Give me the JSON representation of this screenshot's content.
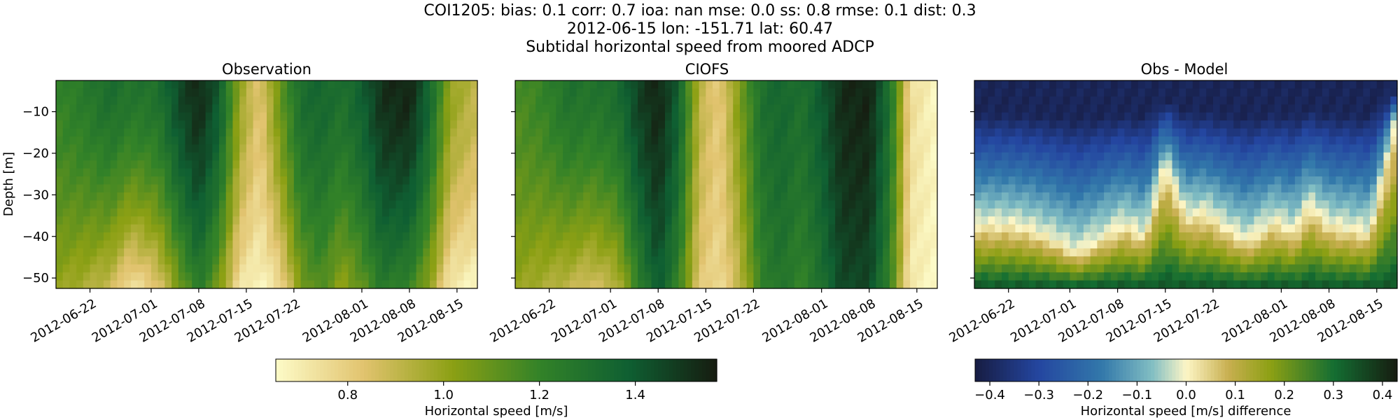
{
  "figure": {
    "title_lines": [
      "COI1205: bias: 0.1  corr: 0.7  ioa: nan  mse: 0.0  ss: 0.8  rmse: 0.1  dist: 0.3",
      "2012-06-15 lon: -151.71 lat: 60.47",
      "Subtidal horizontal speed from moored ADCP"
    ]
  },
  "chart_data": [
    {
      "type": "heatmap",
      "title": "Observation",
      "ylabel": "Depth [m]",
      "xlabel": "",
      "x_range": [
        "2012-06-17",
        "2012-08-18"
      ],
      "y_range": [
        -52.5,
        -2.5
      ],
      "x_ticks": [
        "2012-06-22",
        "2012-07-01",
        "2012-07-08",
        "2012-07-15",
        "2012-07-22",
        "2012-08-01",
        "2012-08-08",
        "2012-08-15"
      ],
      "y_ticks": [
        -10,
        -20,
        -30,
        -40,
        -50
      ],
      "y_tick_labels": [
        "−10",
        "−20",
        "−30",
        "−40",
        "−50"
      ],
      "colormap": "speed",
      "colorbar": {
        "label": "Horizontal speed [m/s]",
        "vmin": 0.65,
        "vmax": 1.57,
        "ticks": [
          0.8,
          1.0,
          1.2,
          1.4
        ],
        "tick_labels": [
          "0.8",
          "1.0",
          "1.2",
          "1.4"
        ]
      },
      "time_profile": {
        "dates": [
          "2012-06-17",
          "2012-06-21",
          "2012-06-25",
          "2012-06-28",
          "2012-07-02",
          "2012-07-05",
          "2012-07-08",
          "2012-07-11",
          "2012-07-14",
          "2012-07-17",
          "2012-07-20",
          "2012-07-23",
          "2012-07-26",
          "2012-07-29",
          "2012-08-01",
          "2012-08-04",
          "2012-08-08",
          "2012-08-11",
          "2012-08-14",
          "2012-08-18"
        ],
        "surface_speed": [
          1.2,
          1.25,
          1.32,
          1.28,
          1.3,
          1.45,
          1.54,
          1.4,
          1.0,
          0.82,
          1.1,
          1.32,
          1.35,
          1.3,
          1.38,
          1.52,
          1.55,
          1.35,
          1.0,
          0.9
        ],
        "bottom_speed": [
          1.0,
          0.95,
          0.88,
          0.72,
          0.82,
          1.05,
          1.25,
          1.05,
          0.72,
          0.66,
          0.75,
          1.05,
          1.15,
          1.0,
          1.1,
          1.25,
          1.2,
          1.0,
          0.7,
          0.66
        ]
      }
    },
    {
      "type": "heatmap",
      "title": "CIOFS",
      "ylabel": "",
      "xlabel": "",
      "x_range": [
        "2012-06-17",
        "2012-08-18"
      ],
      "y_range": [
        -52.5,
        -2.5
      ],
      "x_ticks": [
        "2012-06-22",
        "2012-07-01",
        "2012-07-08",
        "2012-07-15",
        "2012-07-22",
        "2012-08-01",
        "2012-08-08",
        "2012-08-15"
      ],
      "y_ticks": [
        -10,
        -20,
        -30,
        -40,
        -50
      ],
      "colormap": "speed",
      "time_profile": {
        "dates": [
          "2012-06-17",
          "2012-06-21",
          "2012-06-25",
          "2012-06-28",
          "2012-07-02",
          "2012-07-05",
          "2012-07-08",
          "2012-07-11",
          "2012-07-14",
          "2012-07-17",
          "2012-07-20",
          "2012-07-23",
          "2012-07-26",
          "2012-07-29",
          "2012-08-01",
          "2012-08-04",
          "2012-08-08",
          "2012-08-11",
          "2012-08-14",
          "2012-08-18"
        ],
        "surface_speed": [
          1.15,
          1.2,
          1.3,
          1.28,
          1.32,
          1.47,
          1.55,
          1.38,
          0.92,
          0.8,
          1.05,
          1.3,
          1.35,
          1.3,
          1.4,
          1.53,
          1.55,
          1.3,
          0.75,
          0.66
        ],
        "bottom_speed": [
          1.0,
          0.95,
          0.9,
          0.85,
          0.92,
          1.2,
          1.4,
          1.2,
          0.82,
          0.75,
          0.9,
          1.2,
          1.28,
          1.2,
          1.3,
          1.45,
          1.45,
          1.2,
          0.7,
          0.66
        ]
      }
    },
    {
      "type": "heatmap",
      "title": "Obs - Model",
      "ylabel": "",
      "xlabel": "",
      "x_range": [
        "2012-06-17",
        "2012-08-18"
      ],
      "y_range": [
        -52.5,
        -2.5
      ],
      "x_ticks": [
        "2012-06-22",
        "2012-07-01",
        "2012-07-08",
        "2012-07-15",
        "2012-07-22",
        "2012-08-01",
        "2012-08-08",
        "2012-08-15"
      ],
      "y_ticks": [
        -10,
        -20,
        -30,
        -40,
        -50
      ],
      "colormap": "balance-diff",
      "colorbar": {
        "label": "Horizontal speed [m/s] difference",
        "vmin": -0.43,
        "vmax": 0.43,
        "ticks": [
          -0.4,
          -0.3,
          -0.2,
          -0.1,
          0.0,
          0.1,
          0.2,
          0.3,
          0.4
        ],
        "tick_labels": [
          "−0.4",
          "−0.3",
          "−0.2",
          "−0.1",
          "0.0",
          "0.1",
          "0.2",
          "0.3",
          "0.4"
        ]
      },
      "zero_crossing_depth": {
        "dates": [
          "2012-06-17",
          "2012-06-22",
          "2012-06-25",
          "2012-06-29",
          "2012-07-02",
          "2012-07-06",
          "2012-07-09",
          "2012-07-12",
          "2012-07-15",
          "2012-07-18",
          "2012-07-21",
          "2012-07-24",
          "2012-07-27",
          "2012-07-31",
          "2012-08-03",
          "2012-08-05",
          "2012-08-08",
          "2012-08-11",
          "2012-08-14",
          "2012-08-18"
        ],
        "depth_m": [
          -37,
          -37,
          -38,
          -41,
          -44,
          -40,
          -37,
          -40,
          -22,
          -35,
          -34,
          -38,
          -41,
          -36,
          -39,
          -32,
          -37,
          -38,
          -39,
          -10
        ]
      },
      "surface_diff": -0.4,
      "bottom_diff": 0.33
    }
  ]
}
